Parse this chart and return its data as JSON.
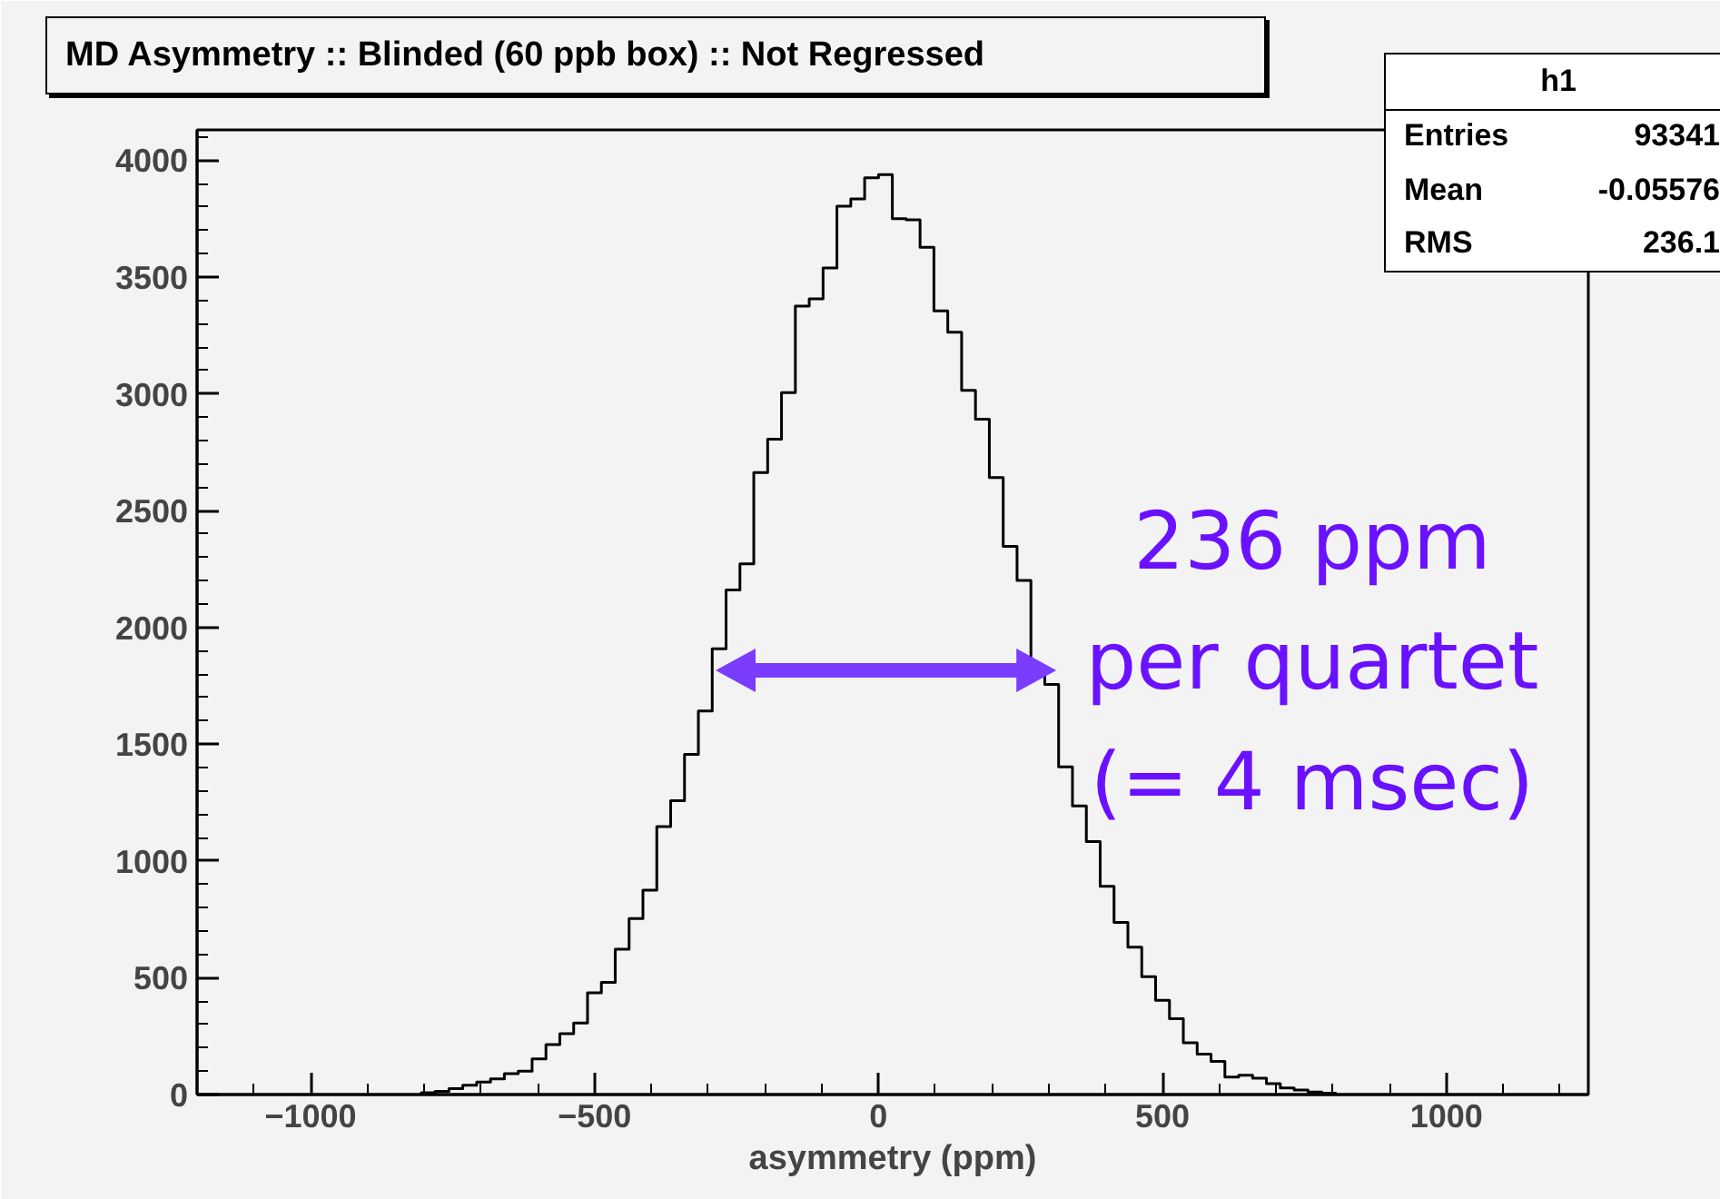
{
  "chart_data": {
    "type": "histogram",
    "title": "MD Asymmetry :: Blinded (60 ppb box) :: Not Regressed",
    "xlabel": "asymmetry (ppm)",
    "bins": [
      -805.2,
      -780.8,
      -756.4,
      -732,
      -707.6,
      -683.2,
      -658.8,
      -634.4,
      -610,
      -585.6,
      -561.2,
      -536.8,
      -512.4,
      -488,
      -463.6,
      -439.2,
      -414.8,
      -390.4,
      -366,
      -341.6,
      -317.2,
      -292.8,
      -268.4,
      -244,
      -219.6,
      -195.2,
      -170.8,
      -146.4,
      -122,
      -97.6,
      -73.2,
      -48.8,
      -24.4,
      0,
      24.4,
      48.8,
      73.2,
      97.6,
      122,
      146.4,
      170.8,
      195.2,
      219.6,
      244,
      268.4,
      292.8,
      317.2,
      341.6,
      366,
      390.4,
      414.8,
      439.2,
      463.6,
      488,
      512.4,
      536.8,
      561.2,
      585.6,
      610,
      634.4,
      658.8,
      683.2,
      707.6,
      732,
      756.4,
      780.8,
      805.2
    ],
    "values": [
      8,
      14,
      25,
      40,
      53,
      67,
      89,
      100,
      153,
      214,
      261,
      306,
      436,
      480,
      622,
      753,
      875,
      1147,
      1258,
      1456,
      1642,
      1908,
      2160,
      2272,
      2663,
      2806,
      3005,
      3376,
      3407,
      3539,
      3803,
      3834,
      3925,
      3938,
      3750,
      3745,
      3627,
      3355,
      3264,
      3015,
      2891,
      2642,
      2347,
      2201,
      1825,
      1756,
      1403,
      1236,
      1083,
      892,
      737,
      631,
      505,
      403,
      325,
      222,
      173,
      142,
      75,
      83,
      70,
      47,
      28,
      19,
      11,
      6
    ],
    "color": "#000000",
    "xlim": [
      -1200,
      1250
    ],
    "ylim": [
      0,
      4130
    ],
    "xticks": [
      -1000,
      -500,
      0,
      500,
      1000
    ],
    "yticks": [
      0,
      500,
      1000,
      1500,
      2000,
      2500,
      3000,
      3500,
      4000
    ],
    "grid": false,
    "annotations": [
      "h1",
      "Entries",
      "93341",
      "Mean",
      "-0.05576",
      "RMS",
      "236.1",
      {
        "text": "236 ppm\nper quartet\n(= 4 msec)",
        "x": 300,
        "y": 1850
      }
    ]
  }
}
